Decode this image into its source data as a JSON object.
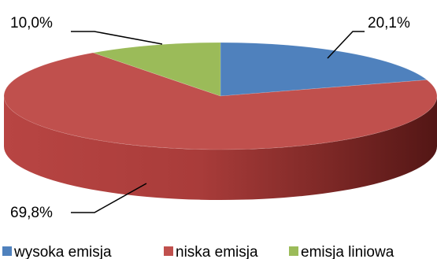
{
  "chart_data": {
    "type": "pie",
    "title": "",
    "slices": [
      {
        "name": "wysoka emisja",
        "value": 20.1,
        "label": "20,1%",
        "color": "#4F81BD"
      },
      {
        "name": "niska emisja",
        "value": 69.8,
        "label": "69,8%",
        "color": "#C0504D"
      },
      {
        "name": "emisja liniowa",
        "value": 10.0,
        "label": "10,0%",
        "color": "#9BBB59"
      }
    ],
    "legend_position": "bottom",
    "style": "3d"
  }
}
